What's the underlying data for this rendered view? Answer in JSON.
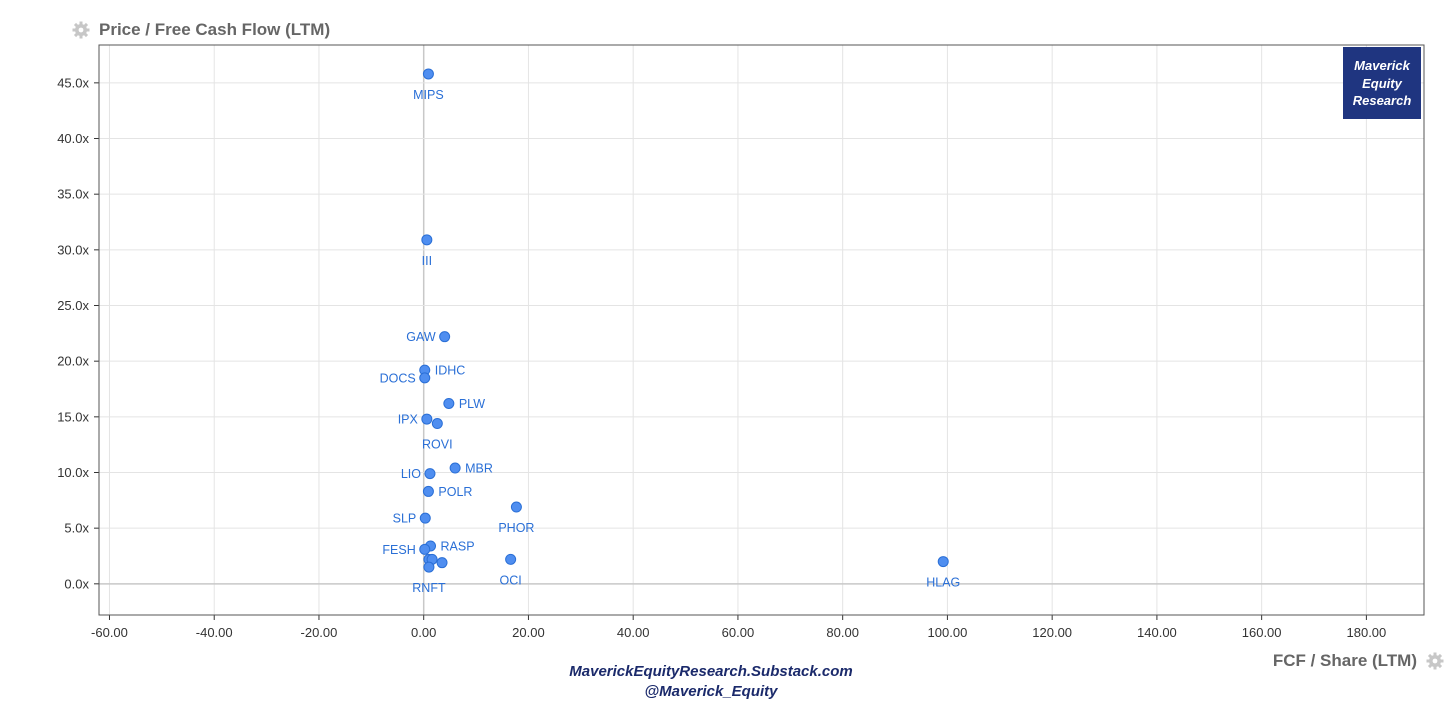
{
  "colors": {
    "point": "#4f8ef0",
    "point_stroke": "#2a6fd6",
    "label": "#2a6fd6",
    "grid": "#e4e4e4",
    "zero_line": "#c8c8c8",
    "axis": "#333333",
    "title": "#666666",
    "footer": "#1b2a6b",
    "logo_bg": "#1f3580"
  },
  "icons": {
    "title_icon": "gear-icon",
    "xlabel_icon": "gear-icon"
  },
  "logo": {
    "lines": [
      "Maverick",
      "Equity",
      "Research"
    ]
  },
  "footer": {
    "line1": "MaverickEquityResearch.Substack.com",
    "line2": "@Maverick_Equity"
  },
  "chart_data": {
    "type": "scatter",
    "title": "Price / Free Cash Flow (LTM)",
    "xlabel": "FCF / Share (LTM)",
    "ylabel": "",
    "xlim": [
      -62,
      191
    ],
    "ylim": [
      -2.8,
      48.4
    ],
    "x_ticks": [
      -60,
      -40,
      -20,
      0,
      20,
      40,
      60,
      80,
      100,
      120,
      140,
      160,
      180
    ],
    "x_tick_labels": [
      "-60.00",
      "-40.00",
      "-20.00",
      "0.00",
      "20.00",
      "40.00",
      "60.00",
      "80.00",
      "100.00",
      "120.00",
      "140.00",
      "160.00",
      "180.00"
    ],
    "y_ticks": [
      0,
      5,
      10,
      15,
      20,
      25,
      30,
      35,
      40,
      45
    ],
    "y_tick_labels": [
      "0.0x",
      "5.0x",
      "10.0x",
      "15.0x",
      "20.0x",
      "25.0x",
      "30.0x",
      "35.0x",
      "40.0x",
      "45.0x"
    ],
    "grid": true,
    "legend": "none",
    "points": [
      {
        "x": 0.9,
        "y": 45.8,
        "label": "MIPS",
        "pos": "below"
      },
      {
        "x": 0.6,
        "y": 30.9,
        "label": "III",
        "pos": "below"
      },
      {
        "x": 4.0,
        "y": 22.2,
        "label": "GAW",
        "pos": "left"
      },
      {
        "x": 0.2,
        "y": 19.2,
        "label": "IDHC",
        "pos": "right"
      },
      {
        "x": 0.2,
        "y": 18.5,
        "label": "DOCS",
        "pos": "left"
      },
      {
        "x": 4.8,
        "y": 16.2,
        "label": "PLW",
        "pos": "right"
      },
      {
        "x": 0.6,
        "y": 14.8,
        "label": "IPX",
        "pos": "left"
      },
      {
        "x": 2.6,
        "y": 14.4,
        "label": "ROVI",
        "pos": "belowleft"
      },
      {
        "x": 6.0,
        "y": 10.4,
        "label": "MBR",
        "pos": "right"
      },
      {
        "x": 1.2,
        "y": 9.9,
        "label": "LIO",
        "pos": "left"
      },
      {
        "x": 0.9,
        "y": 8.3,
        "label": "POLR",
        "pos": "right"
      },
      {
        "x": 17.7,
        "y": 6.9,
        "label": "PHOR",
        "pos": "below"
      },
      {
        "x": 0.3,
        "y": 5.9,
        "label": "SLP",
        "pos": "left"
      },
      {
        "x": 1.3,
        "y": 3.4,
        "label": "RASP",
        "pos": "right"
      },
      {
        "x": 0.2,
        "y": 3.1,
        "label": "FESH",
        "pos": "left"
      },
      {
        "x": 1.0,
        "y": 2.2,
        "label": "",
        "pos": "none"
      },
      {
        "x": 1.6,
        "y": 2.2,
        "label": "",
        "pos": "none"
      },
      {
        "x": 3.5,
        "y": 1.9,
        "label": "",
        "pos": "none"
      },
      {
        "x": 1.0,
        "y": 1.5,
        "label": "RNFT",
        "pos": "below"
      },
      {
        "x": 16.6,
        "y": 2.2,
        "label": "OCI",
        "pos": "below"
      },
      {
        "x": 99.2,
        "y": 2.0,
        "label": "HLAG",
        "pos": "below"
      }
    ]
  }
}
